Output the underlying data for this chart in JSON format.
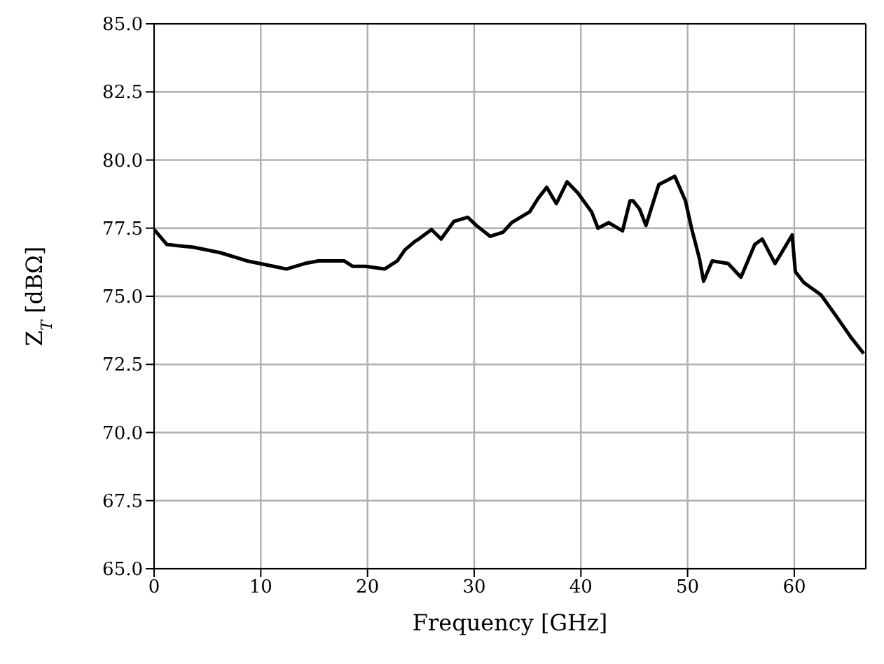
{
  "chart_data": {
    "type": "line",
    "xlabel": "Frequency [GHz]",
    "ylabel": "Z$_{T}$ [dBΩ]",
    "x": [
      0,
      1.2,
      3.7,
      6.2,
      8.7,
      11.2,
      12.4,
      14.1,
      15.4,
      17.8,
      18.6,
      19.8,
      21.6,
      22.8,
      23.5,
      24.4,
      24.8,
      26.0,
      26.9,
      28.1,
      29.4,
      30.2,
      31.5,
      32.7,
      33.5,
      35.2,
      36.0,
      36.8,
      37.7,
      38.7,
      39.7,
      41.0,
      41.6,
      42.6,
      43.9,
      44.6,
      44.9,
      45.5,
      46.1,
      47.3,
      48.8,
      49.8,
      50.4,
      51.1,
      51.5,
      52.3,
      53.8,
      55.0,
      56.3,
      57.0,
      58.2,
      59.8,
      60.1,
      60.9,
      62.5,
      63.7,
      65.3,
      66.5
    ],
    "series": [
      {
        "color": "#000000",
        "values": [
          77.45,
          76.9,
          76.8,
          76.6,
          76.3,
          76.1,
          76.0,
          76.2,
          76.3,
          76.3,
          76.1,
          76.1,
          76.0,
          76.3,
          76.7,
          77.0,
          77.1,
          77.45,
          77.1,
          77.75,
          77.9,
          77.6,
          77.2,
          77.35,
          77.7,
          78.1,
          78.6,
          79.0,
          78.4,
          79.2,
          78.8,
          78.1,
          77.5,
          77.7,
          77.4,
          78.5,
          78.5,
          78.2,
          77.6,
          79.1,
          79.4,
          78.5,
          77.45,
          76.4,
          75.55,
          76.3,
          76.2,
          75.7,
          76.9,
          77.1,
          76.2,
          77.25,
          75.9,
          75.5,
          75.05,
          74.4,
          73.5,
          72.9
        ]
      }
    ],
    "xlim": [
      0,
      66.7
    ],
    "xticks": [
      0,
      10,
      20,
      30,
      40,
      50,
      60
    ],
    "ylim": [
      65,
      85
    ],
    "yticks": [
      {
        "value": 65,
        "label": "65.0"
      },
      {
        "value": 67.5,
        "label": "67.5"
      },
      {
        "value": 70,
        "label": "70.0"
      },
      {
        "value": 72.5,
        "label": "72.5"
      },
      {
        "value": 75,
        "label": "75.0"
      },
      {
        "value": 77.5,
        "label": "77.5"
      },
      {
        "value": 80,
        "label": "80.0"
      },
      {
        "value": 82.5,
        "label": "82.5"
      },
      {
        "value": 85,
        "label": "85.0"
      }
    ],
    "grid": true,
    "legend": false,
    "marker": "none",
    "line_style": "solid"
  }
}
